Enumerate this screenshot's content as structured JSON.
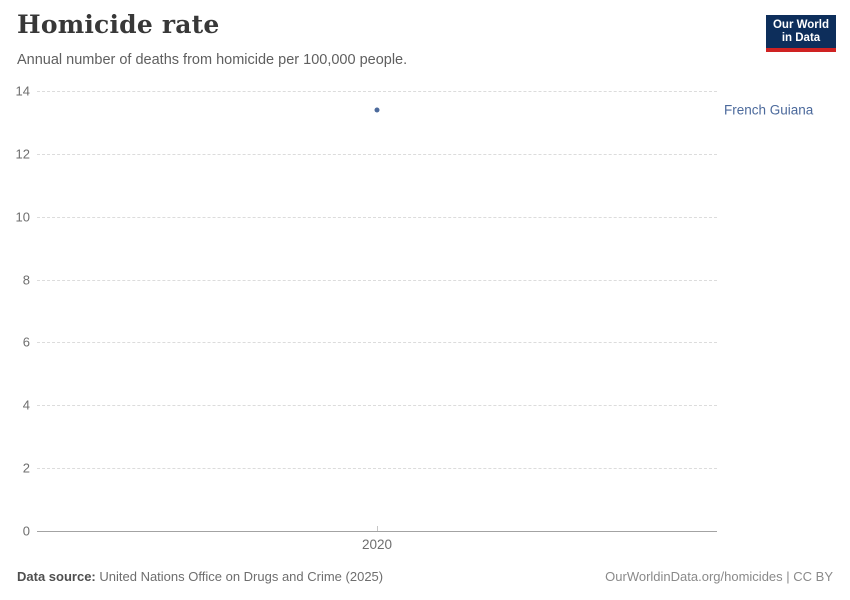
{
  "chart_data": {
    "type": "scatter",
    "title": "Homicide rate",
    "subtitle": "Annual number of deaths from homicide per 100,000 people.",
    "series": [
      {
        "name": "French Guiana",
        "color": "#4c6a9c",
        "x": [
          2020
        ],
        "y": [
          13.4
        ]
      }
    ],
    "x_ticks": [
      2020
    ],
    "y_ticks": [
      0,
      2,
      4,
      6,
      8,
      10,
      12,
      14
    ],
    "xlim": [
      2019,
      2021
    ],
    "ylim": [
      0,
      14
    ],
    "xlabel": "",
    "ylabel": "",
    "grid": "horizontal dashed, solid baseline at 0",
    "legend": "entity label right of plot",
    "colors": {
      "gridline": "#dcdcdc",
      "axis": "#a3a3a3",
      "tick_label": "#6e6e6e"
    }
  },
  "logo": {
    "line1": "Our World",
    "line2": "in Data",
    "bg_color": "#0d2e5b",
    "accent_color": "#cf2222"
  },
  "footer": {
    "source_label": "Data source:",
    "source_text": "United Nations Office on Drugs and Crime (2025)",
    "link_text": "OurWorldinData.org/homicides | CC BY"
  }
}
